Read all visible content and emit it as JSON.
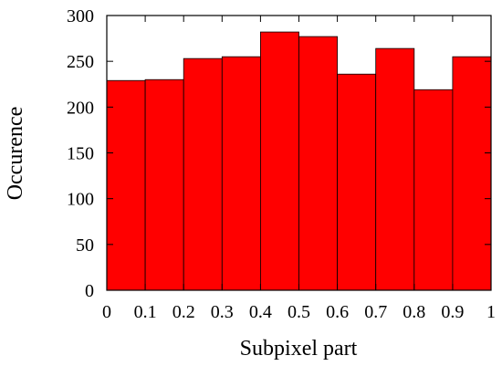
{
  "chart_data": {
    "type": "bar",
    "title": "",
    "xlabel": "Subpixel part",
    "ylabel": "Occurence",
    "bar_color": "#ff0000",
    "bin_edges": [
      0,
      0.1,
      0.2,
      0.3,
      0.4,
      0.5,
      0.6,
      0.7,
      0.8,
      0.9,
      1.0
    ],
    "values": [
      229,
      230,
      253,
      255,
      282,
      277,
      236,
      264,
      219,
      255
    ],
    "xlim": [
      0,
      1
    ],
    "ylim": [
      0,
      300
    ],
    "xticks": [
      "0",
      "0.1",
      "0.2",
      "0.3",
      "0.4",
      "0.5",
      "0.6",
      "0.7",
      "0.8",
      "0.9",
      "1"
    ],
    "yticks": [
      "0",
      "50",
      "100",
      "150",
      "200",
      "250",
      "300"
    ],
    "grid": false,
    "legend": "none"
  }
}
